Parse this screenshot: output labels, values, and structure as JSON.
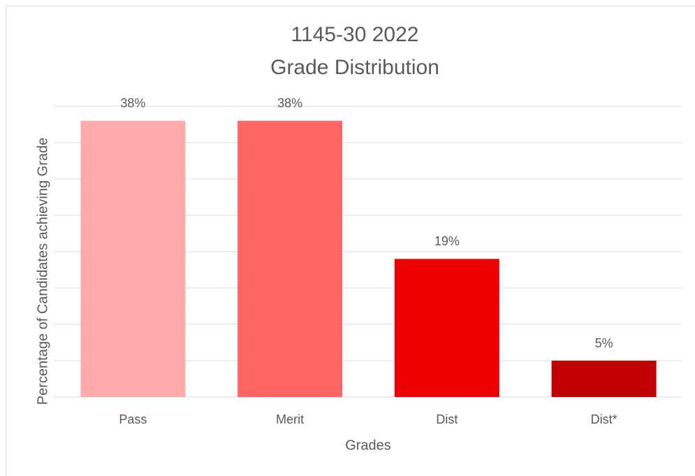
{
  "chart_data": {
    "type": "bar",
    "title": [
      "1145-30 2022",
      "Grade Distribution"
    ],
    "x_label": "Grades",
    "y_label": "Percentage of Candidates achieving Grade",
    "categories": [
      "Pass",
      "Merit",
      "Dist",
      "Dist*"
    ],
    "values": [
      38,
      38,
      19,
      5
    ],
    "value_labels": [
      "38%",
      "38%",
      "19%",
      "5%"
    ],
    "colors": [
      "#ffabab",
      "#ff6666",
      "#ee0000",
      "#c00000"
    ],
    "ylim": [
      0,
      40
    ],
    "yticks": [
      0,
      5,
      10,
      15,
      20,
      25,
      30,
      35,
      40
    ],
    "grid": true
  }
}
